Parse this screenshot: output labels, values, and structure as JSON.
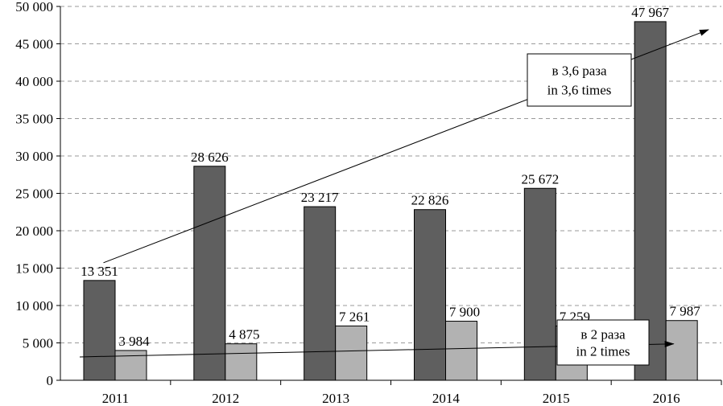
{
  "chart_data": {
    "type": "bar",
    "categories": [
      "2011",
      "2012",
      "2013",
      "2014",
      "2015",
      "2016"
    ],
    "series": [
      {
        "values": [
          13351,
          28626,
          23217,
          22826,
          25672,
          47967
        ],
        "labels": [
          "13 351",
          "28 626",
          "23 217",
          "22 826",
          "25 672",
          "47 967"
        ],
        "color": "#5f5f5f"
      },
      {
        "values": [
          3984,
          4875,
          7261,
          7900,
          7259,
          7987
        ],
        "labels": [
          "3 984",
          "4 875",
          "7 261",
          "7 900",
          "7 259",
          "7 987"
        ],
        "color": "#b2b2b2"
      }
    ],
    "ylim": [
      0,
      50000
    ],
    "yticks": [
      0,
      5000,
      10000,
      15000,
      20000,
      25000,
      30000,
      35000,
      40000,
      45000,
      50000
    ],
    "ytick_labels": [
      "0",
      "5 000",
      "10 000",
      "15 000",
      "20 000",
      "25 000",
      "30 000",
      "35 000",
      "40 000",
      "45 000",
      "50 000"
    ],
    "grid": "horizontal dashed",
    "annotations": [
      {
        "line1": "в 3,6 раза",
        "line2": "in 3,6 times",
        "trend": "series 1, 2011 to 2016"
      },
      {
        "line1": "в 2 раза",
        "line2": "in 2 times",
        "trend": "series 2, 2011 to 2016"
      }
    ]
  }
}
